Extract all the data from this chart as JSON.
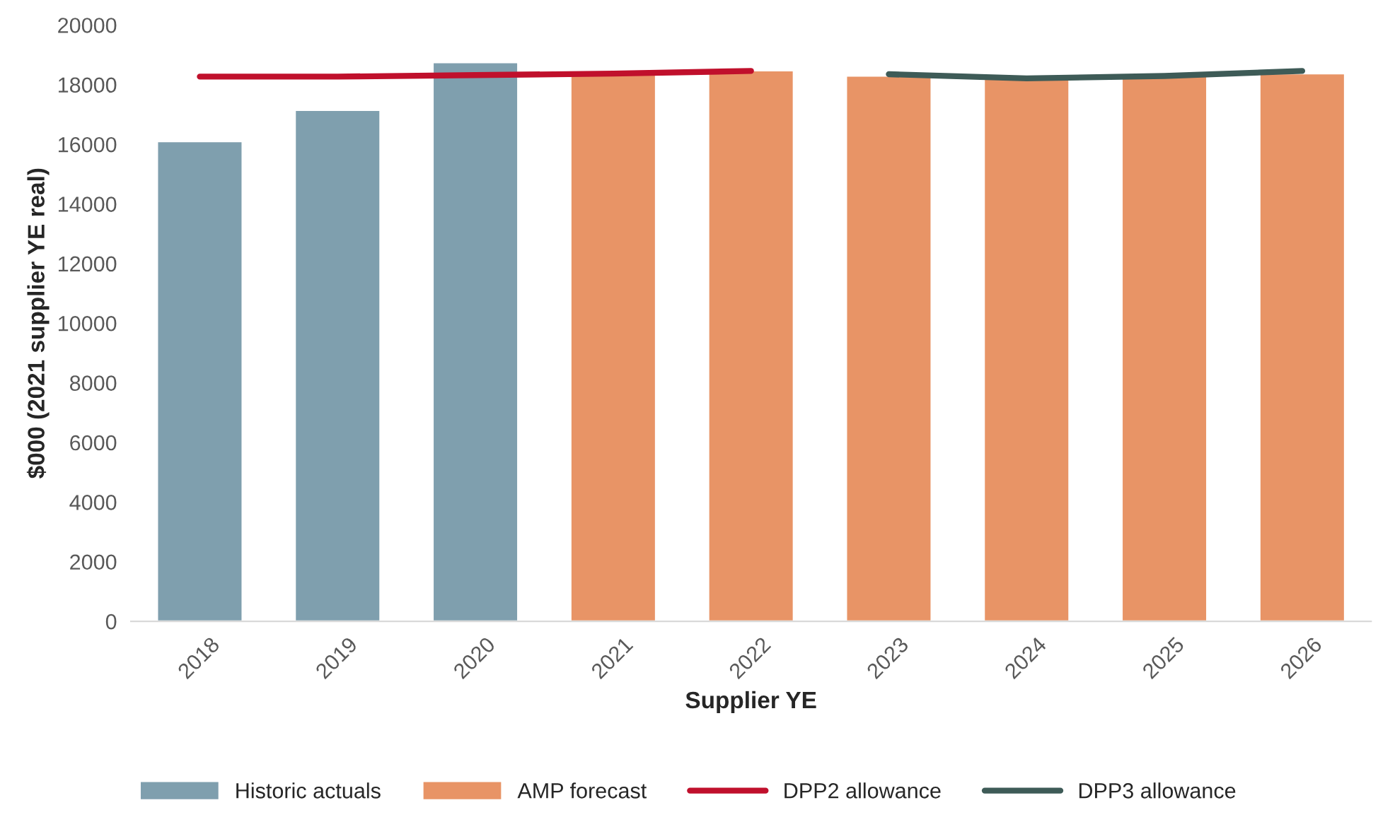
{
  "chart_data": {
    "type": "bar",
    "xlabel": "Supplier YE",
    "ylabel": "$000 (2021 supplier YE real)",
    "categories": [
      "2018",
      "2019",
      "2020",
      "2021",
      "2022",
      "2023",
      "2024",
      "2025",
      "2026"
    ],
    "series": [
      {
        "name": "Historic actuals",
        "color": "#7f9fae",
        "values": [
          16100,
          17150,
          18750,
          null,
          null,
          null,
          null,
          null,
          null
        ]
      },
      {
        "name": "AMP forecast",
        "color": "#e89466",
        "values": [
          null,
          null,
          null,
          18350,
          18480,
          18300,
          18200,
          18290,
          18380
        ]
      },
      {
        "name": "DPP2 allowance",
        "type": "line",
        "color": "#c0102c",
        "values": [
          18270,
          18270,
          18320,
          18370,
          18460,
          null,
          null,
          null,
          null
        ]
      },
      {
        "name": "DPP3 allowance",
        "type": "line",
        "color": "#3e5b57",
        "values": [
          null,
          null,
          null,
          null,
          null,
          18350,
          18210,
          18290,
          18460
        ]
      }
    ],
    "ylim": [
      0,
      20000
    ],
    "yticks": [
      0,
      2000,
      4000,
      6000,
      8000,
      10000,
      12000,
      14000,
      16000,
      18000,
      20000
    ],
    "grid": false,
    "legend": "bottom",
    "marker": "none",
    "line_style": "solid"
  }
}
